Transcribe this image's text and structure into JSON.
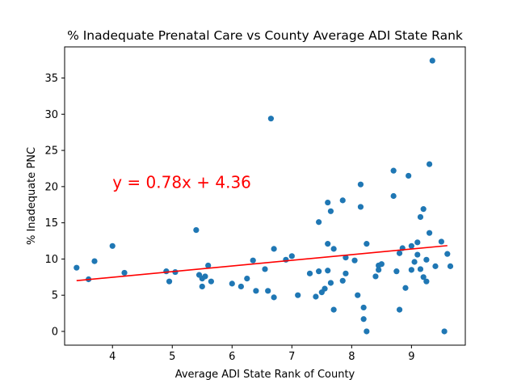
{
  "chart_data": {
    "type": "scatter",
    "title": "% Inadequate Prenatal Care vs County Average ADI State Rank",
    "xlabel": "Average ADI State Rank of County",
    "ylabel": "% Inadequate PNC",
    "xlim": [
      3.2,
      9.9
    ],
    "ylim": [
      -1.9,
      39.3
    ],
    "xticks": [
      4,
      5,
      6,
      7,
      8,
      9
    ],
    "yticks": [
      0,
      5,
      10,
      15,
      20,
      25,
      30,
      35
    ],
    "grid": false,
    "legend": "none",
    "colors": {
      "points": "#1f77b4",
      "regression": "#ff0000",
      "annotation": "#ff0000"
    },
    "regression": {
      "slope": 0.78,
      "intercept": 4.36,
      "x_range": [
        3.4,
        9.6
      ]
    },
    "annotation": {
      "text": "y = 0.78x + 4.36",
      "x": 4.0,
      "y": 19.8
    },
    "points": [
      [
        3.4,
        8.8
      ],
      [
        3.6,
        7.2
      ],
      [
        3.7,
        9.7
      ],
      [
        4.0,
        11.8
      ],
      [
        4.2,
        8.1
      ],
      [
        4.9,
        8.3
      ],
      [
        4.95,
        6.9
      ],
      [
        5.05,
        8.2
      ],
      [
        5.4,
        14.0
      ],
      [
        5.45,
        7.8
      ],
      [
        5.5,
        6.2
      ],
      [
        5.5,
        7.3
      ],
      [
        5.55,
        7.6
      ],
      [
        5.6,
        9.1
      ],
      [
        5.65,
        6.9
      ],
      [
        6.0,
        6.6
      ],
      [
        6.15,
        6.2
      ],
      [
        6.25,
        7.3
      ],
      [
        6.35,
        9.8
      ],
      [
        6.4,
        5.6
      ],
      [
        6.55,
        8.6
      ],
      [
        6.6,
        5.6
      ],
      [
        6.65,
        29.4
      ],
      [
        6.7,
        11.4
      ],
      [
        6.7,
        4.7
      ],
      [
        6.9,
        9.9
      ],
      [
        7.0,
        10.4
      ],
      [
        7.1,
        5.0
      ],
      [
        7.3,
        8.0
      ],
      [
        7.4,
        4.8
      ],
      [
        7.45,
        8.3
      ],
      [
        7.45,
        15.1
      ],
      [
        7.5,
        5.4
      ],
      [
        7.55,
        5.9
      ],
      [
        7.6,
        17.8
      ],
      [
        7.6,
        12.1
      ],
      [
        7.6,
        8.4
      ],
      [
        7.65,
        16.6
      ],
      [
        7.65,
        6.7
      ],
      [
        7.7,
        3.0
      ],
      [
        7.7,
        11.4
      ],
      [
        7.85,
        7.0
      ],
      [
        7.85,
        18.1
      ],
      [
        7.9,
        10.2
      ],
      [
        7.9,
        8.0
      ],
      [
        8.05,
        9.8
      ],
      [
        8.1,
        5.0
      ],
      [
        8.15,
        17.2
      ],
      [
        8.15,
        20.3
      ],
      [
        8.2,
        1.7
      ],
      [
        8.2,
        3.3
      ],
      [
        8.25,
        0.0
      ],
      [
        8.25,
        12.1
      ],
      [
        8.4,
        7.6
      ],
      [
        8.45,
        9.1
      ],
      [
        8.45,
        8.5
      ],
      [
        8.5,
        9.3
      ],
      [
        8.7,
        22.2
      ],
      [
        8.7,
        18.7
      ],
      [
        8.75,
        8.3
      ],
      [
        8.8,
        3.0
      ],
      [
        8.8,
        10.8
      ],
      [
        8.85,
        11.5
      ],
      [
        8.9,
        6.0
      ],
      [
        8.95,
        21.5
      ],
      [
        9.0,
        11.8
      ],
      [
        9.0,
        8.5
      ],
      [
        9.05,
        9.6
      ],
      [
        9.1,
        12.3
      ],
      [
        9.1,
        10.6
      ],
      [
        9.15,
        15.8
      ],
      [
        9.15,
        8.6
      ],
      [
        9.2,
        7.5
      ],
      [
        9.2,
        16.9
      ],
      [
        9.25,
        9.9
      ],
      [
        9.25,
        6.9
      ],
      [
        9.3,
        23.1
      ],
      [
        9.3,
        13.6
      ],
      [
        9.35,
        37.4
      ],
      [
        9.4,
        9.0
      ],
      [
        9.5,
        12.4
      ],
      [
        9.55,
        0.0
      ],
      [
        9.6,
        10.7
      ],
      [
        9.65,
        9.0
      ]
    ]
  }
}
